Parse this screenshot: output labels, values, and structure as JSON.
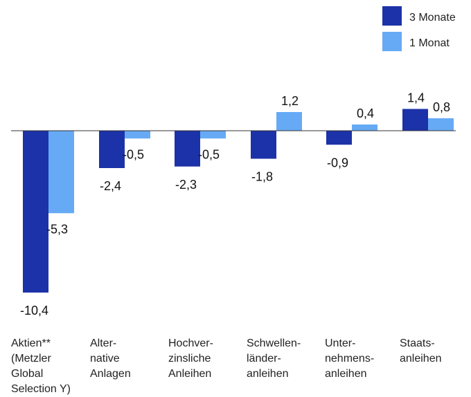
{
  "chart_data": {
    "type": "bar",
    "categories": [
      [
        "Aktien**",
        "(Metzler",
        "Global",
        "Selection Y)"
      ],
      [
        "Alter-",
        "native",
        "Anlagen"
      ],
      [
        "Hochver-",
        "zinsliche",
        "Anleihen"
      ],
      [
        "Schwellen-",
        "länder-",
        "anleihen"
      ],
      [
        "Unter-",
        "nehmens-",
        "anleihen"
      ],
      [
        "Staats-",
        "anleihen"
      ]
    ],
    "series": [
      {
        "name": "3 Monate",
        "color": "#1c32a8",
        "values": [
          -10.4,
          -2.4,
          -2.3,
          -1.8,
          -0.9,
          1.4
        ],
        "labels": [
          "-10,4",
          "-2,4",
          "-2,3",
          "-1,8",
          "-0,9",
          "1,4"
        ]
      },
      {
        "name": "1 Monat",
        "color": "#66aaf5",
        "values": [
          -5.3,
          -0.5,
          -0.5,
          1.2,
          0.4,
          0.8
        ],
        "labels": [
          "-5,3",
          "-0,5",
          "-0,5",
          "1,2",
          "0,4",
          "0,8"
        ]
      }
    ],
    "legend": "top-right",
    "grid": false,
    "ylim": [
      -10.4,
      1.4
    ]
  }
}
